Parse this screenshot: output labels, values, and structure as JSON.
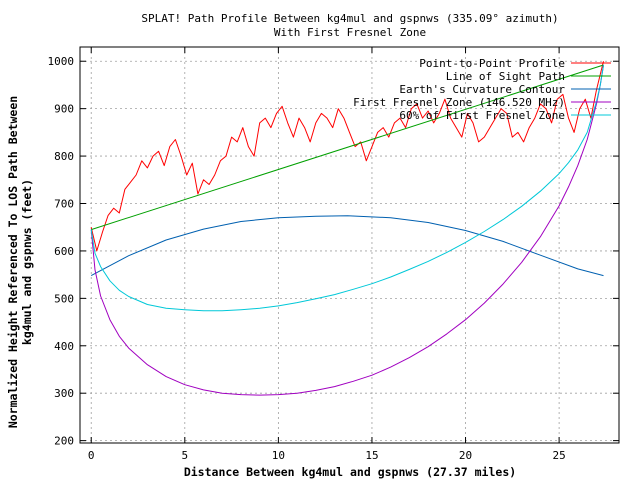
{
  "chart_data": {
    "type": "line",
    "title": "SPLAT! Path Profile Between kg4mul and gspnws (335.09° azimuth)",
    "subtitle": "With First Fresnel Zone",
    "xlabel": "Distance Between kg4mul and gspnws (27.37 miles)",
    "ylabel_line1": "Normalized Height Referenced To LOS Path Between",
    "ylabel_line2": "kg4mul and gspnws (feet)",
    "xlim": [
      -0.6,
      28.2
    ],
    "ylim": [
      195,
      1030
    ],
    "x_ticks": [
      0,
      5,
      10,
      15,
      20,
      25
    ],
    "y_ticks": [
      200,
      300,
      400,
      500,
      600,
      700,
      800,
      900,
      1000
    ],
    "grid": true,
    "legend_position": "top-right",
    "series": [
      {
        "name": "Point-to-Point Profile",
        "color": "#ff0000",
        "x": [
          0,
          0.3,
          0.6,
          0.9,
          1.2,
          1.5,
          1.8,
          2.1,
          2.4,
          2.7,
          3.0,
          3.3,
          3.6,
          3.9,
          4.2,
          4.5,
          4.8,
          5.1,
          5.4,
          5.7,
          6.0,
          6.3,
          6.6,
          6.9,
          7.2,
          7.5,
          7.8,
          8.1,
          8.4,
          8.7,
          9.0,
          9.3,
          9.6,
          9.9,
          10.2,
          10.5,
          10.8,
          11.1,
          11.4,
          11.7,
          12.0,
          12.3,
          12.6,
          12.9,
          13.2,
          13.5,
          13.8,
          14.1,
          14.4,
          14.7,
          15.0,
          15.3,
          15.6,
          15.9,
          16.2,
          16.5,
          16.8,
          17.1,
          17.4,
          17.7,
          18.0,
          18.3,
          18.6,
          18.9,
          19.2,
          19.5,
          19.8,
          20.1,
          20.4,
          20.7,
          21.0,
          21.3,
          21.6,
          21.9,
          22.2,
          22.5,
          22.8,
          23.1,
          23.4,
          23.7,
          24.0,
          24.3,
          24.6,
          24.9,
          25.2,
          25.5,
          25.8,
          26.1,
          26.4,
          26.7,
          27.0,
          27.37
        ],
        "values": [
          650,
          600,
          640,
          675,
          690,
          680,
          730,
          745,
          760,
          790,
          775,
          800,
          810,
          780,
          820,
          835,
          800,
          760,
          785,
          720,
          750,
          740,
          760,
          790,
          800,
          840,
          830,
          860,
          820,
          800,
          870,
          880,
          860,
          890,
          905,
          870,
          840,
          880,
          860,
          830,
          870,
          890,
          880,
          860,
          900,
          880,
          850,
          820,
          830,
          790,
          820,
          850,
          860,
          840,
          870,
          880,
          860,
          900,
          910,
          880,
          895,
          870,
          890,
          920,
          880,
          860,
          840,
          890,
          870,
          830,
          840,
          860,
          880,
          900,
          890,
          840,
          850,
          830,
          860,
          880,
          910,
          900,
          870,
          920,
          930,
          880,
          850,
          900,
          920,
          880,
          940,
          1000
        ]
      },
      {
        "name": "Line of Sight Path",
        "color": "#00a000",
        "x": [
          0,
          27.37
        ],
        "values": [
          645,
          992
        ]
      },
      {
        "name": "Earth's Curvature Contour",
        "color": "#0060b0",
        "x": [
          0,
          2,
          4,
          6,
          8,
          10,
          12,
          13.7,
          16,
          18,
          20,
          22,
          24,
          26,
          27.37
        ],
        "values": [
          548,
          590,
          623,
          646,
          662,
          670,
          673,
          674,
          670,
          660,
          643,
          620,
          591,
          562,
          548
        ]
      },
      {
        "name": "First Fresnel Zone (146.520 MHz)",
        "color": "#a000c0",
        "x": [
          0,
          0.2,
          0.5,
          1,
          1.5,
          2,
          3,
          4,
          5,
          6,
          7,
          8,
          9,
          10,
          11,
          12,
          13,
          14,
          15,
          16,
          17,
          18,
          19,
          20,
          21,
          22,
          23,
          24,
          25,
          25.5,
          26,
          26.5,
          27,
          27.2,
          27.37
        ],
        "values": [
          645,
          560,
          505,
          455,
          420,
          395,
          360,
          335,
          318,
          307,
          300,
          297,
          296,
          297,
          300,
          306,
          314,
          325,
          338,
          355,
          375,
          398,
          425,
          455,
          490,
          530,
          576,
          630,
          695,
          735,
          780,
          835,
          910,
          950,
          992
        ]
      },
      {
        "name": "60% of First Fresnel Zone",
        "color": "#00c8d8",
        "x": [
          0,
          0.2,
          0.5,
          1,
          1.5,
          2,
          3,
          4,
          5,
          6,
          7,
          8,
          9,
          10,
          11,
          12,
          13,
          14,
          15,
          16,
          17,
          18,
          19,
          20,
          21,
          22,
          23,
          24,
          25,
          25.5,
          26,
          26.5,
          27,
          27.2,
          27.37
        ],
        "values": [
          645,
          595,
          567,
          537,
          517,
          504,
          487,
          479,
          476,
          474,
          474,
          476,
          479,
          484,
          491,
          499,
          508,
          519,
          531,
          545,
          561,
          578,
          597,
          618,
          641,
          666,
          694,
          726,
          763,
          786,
          813,
          850,
          915,
          950,
          992
        ]
      }
    ]
  }
}
